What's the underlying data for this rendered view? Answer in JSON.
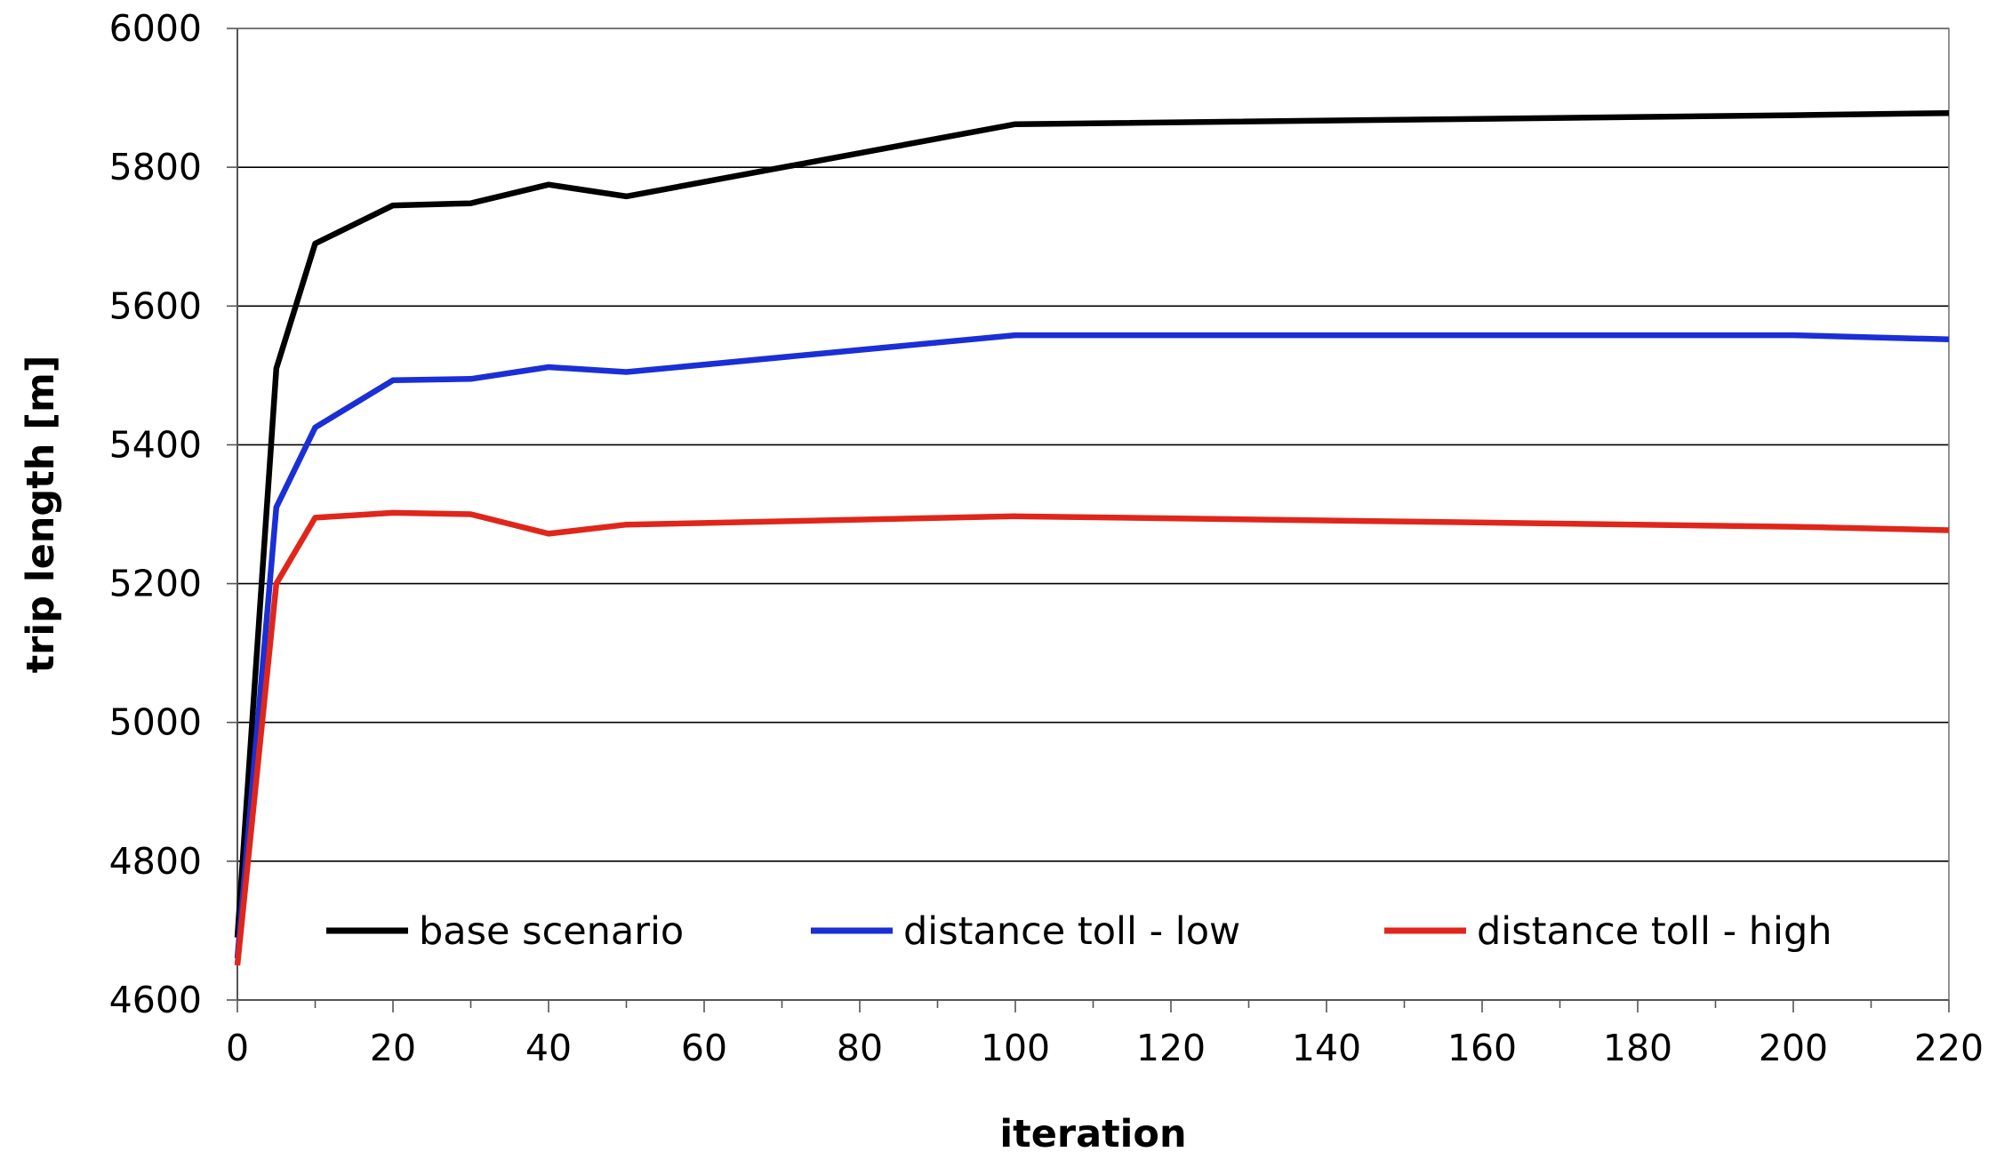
{
  "chart_data": {
    "type": "line",
    "title": "",
    "xlabel": "iteration",
    "ylabel": "trip length [m]",
    "xlim": [
      0,
      220
    ],
    "ylim": [
      4600,
      6000
    ],
    "x_ticks": [
      0,
      20,
      40,
      60,
      80,
      100,
      120,
      140,
      160,
      180,
      200,
      220
    ],
    "y_ticks": [
      4600,
      4800,
      5000,
      5200,
      5400,
      5600,
      5800,
      6000
    ],
    "grid": "horizontal",
    "legend_position": "bottom-inside",
    "series": [
      {
        "name": "base scenario",
        "color": "#000000",
        "x": [
          0,
          5,
          10,
          20,
          30,
          40,
          50,
          100,
          200,
          220
        ],
        "y": [
          4690,
          5510,
          5690,
          5745,
          5748,
          5775,
          5758,
          5862,
          5875,
          5878
        ]
      },
      {
        "name": "distance toll - low",
        "color": "#1a2fd6",
        "x": [
          0,
          5,
          10,
          20,
          30,
          40,
          50,
          100,
          200,
          220
        ],
        "y": [
          4660,
          5310,
          5425,
          5493,
          5495,
          5512,
          5505,
          5558,
          5558,
          5552
        ]
      },
      {
        "name": "distance toll - high",
        "color": "#e0261b",
        "x": [
          0,
          5,
          10,
          20,
          30,
          40,
          50,
          100,
          200,
          220
        ],
        "y": [
          4650,
          5200,
          5295,
          5302,
          5300,
          5272,
          5285,
          5297,
          5282,
          5277
        ]
      }
    ]
  }
}
